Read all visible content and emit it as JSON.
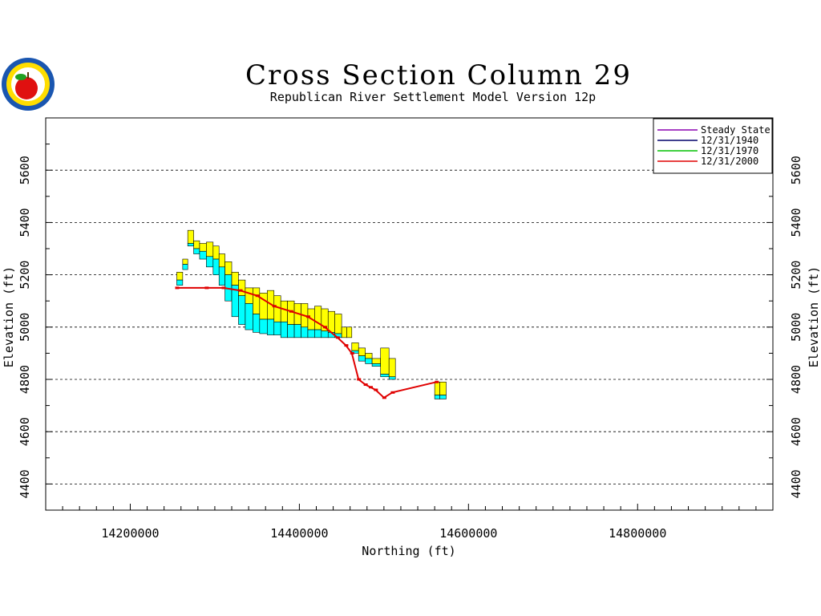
{
  "chart_data": {
    "type": "area",
    "title": "Cross Section Column 29",
    "subtitle": "Republican River Settlement Model Version 12p",
    "xlabel": "Northing (ft)",
    "ylabel": "Elevation (ft)",
    "xlim": [
      14100000,
      14960000
    ],
    "ylim": [
      4300,
      5800
    ],
    "x_ticks": [
      14200000,
      14400000,
      14600000,
      14800000
    ],
    "y_ticks": [
      4400,
      4600,
      4800,
      5000,
      5200,
      5400,
      5600
    ],
    "grid": "horizontal dashed",
    "legend_position": "top-right",
    "legend": [
      {
        "name": "Steady State",
        "color": "#8a00b0"
      },
      {
        "name": "12/31/1940",
        "color": "#00006a"
      },
      {
        "name": "12/31/1970",
        "color": "#00c000"
      },
      {
        "name": "12/31/2000",
        "color": "#e00000"
      }
    ],
    "layer_colors": {
      "upper": "#ffff00",
      "lower": "#00ffff"
    },
    "x": [
      14255000,
      14262000,
      14268000,
      14275000,
      14282000,
      14290000,
      14298000,
      14305000,
      14312000,
      14320000,
      14328000,
      14336000,
      14345000,
      14353000,
      14362000,
      14370000,
      14378000,
      14386000,
      14394000,
      14402000,
      14410000,
      14418000,
      14426000,
      14434000,
      14442000,
      14450000,
      14456000,
      14462000,
      14470000,
      14478000,
      14486000,
      14496000,
      14506000,
      14560000,
      14566000
    ],
    "top": [
      5210,
      5260,
      5370,
      5330,
      5320,
      5325,
      5310,
      5280,
      5250,
      5210,
      5180,
      5150,
      5150,
      5130,
      5140,
      5120,
      5100,
      5100,
      5090,
      5090,
      5070,
      5080,
      5070,
      5060,
      5050,
      5000,
      5000,
      4940,
      4920,
      4900,
      4880,
      4920,
      4880,
      4790,
      4790
    ],
    "mid": [
      5180,
      5240,
      5320,
      5300,
      5290,
      5270,
      5260,
      5230,
      5200,
      5160,
      5120,
      5090,
      5050,
      5030,
      5030,
      5020,
      5020,
      5010,
      5010,
      5000,
      4990,
      4990,
      4985,
      4980,
      4975,
      4960,
      4960,
      4910,
      4890,
      4880,
      4860,
      4820,
      4810,
      4740,
      4740
    ],
    "bottom": [
      5160,
      5220,
      5310,
      5280,
      5260,
      5230,
      5200,
      5160,
      5100,
      5040,
      5010,
      4990,
      4980,
      4975,
      4970,
      4970,
      4960,
      4960,
      4960,
      4960,
      4960,
      4960,
      4960,
      4960,
      4960,
      4960,
      4960,
      4900,
      4870,
      4860,
      4850,
      4810,
      4800,
      4725,
      4725
    ],
    "series": [
      {
        "name": "12/31/2000",
        "color": "#e00000",
        "x": [
          14255000,
          14290000,
          14310000,
          14330000,
          14350000,
          14370000,
          14390000,
          14410000,
          14430000,
          14445000,
          14455000,
          14462000,
          14470000,
          14478000,
          14484000,
          14490000,
          14500000,
          14510000,
          14562000
        ],
        "values": [
          5150,
          5150,
          5150,
          5140,
          5120,
          5080,
          5060,
          5040,
          5000,
          4960,
          4930,
          4900,
          4800,
          4780,
          4770,
          4760,
          4730,
          4750,
          4790
        ]
      }
    ]
  }
}
